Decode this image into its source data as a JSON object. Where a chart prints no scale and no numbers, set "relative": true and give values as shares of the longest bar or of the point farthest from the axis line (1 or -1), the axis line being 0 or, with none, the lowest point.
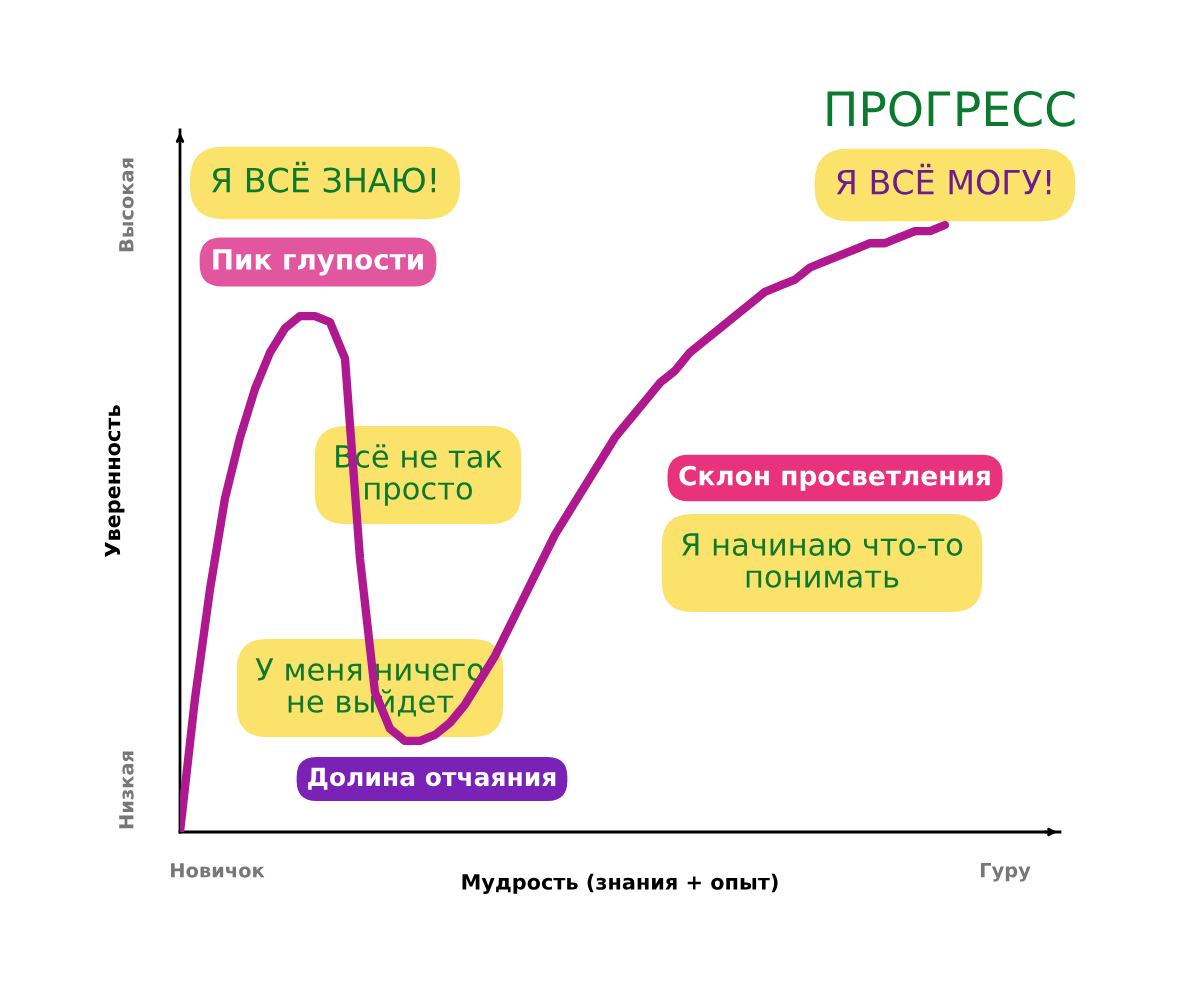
{
  "chart_data": {
    "type": "line",
    "relative": true,
    "title": "ПРОГРЕСС",
    "xlabel": "Мудрость (знания + опыт)",
    "ylabel": "Уверенность",
    "categories": [
      null,
      null,
      null,
      null,
      null,
      null,
      null,
      null,
      null,
      null,
      null,
      null,
      null,
      null,
      null,
      null,
      null,
      null,
      null,
      null,
      null,
      null,
      null,
      null,
      null,
      null,
      null,
      null,
      null,
      null,
      null,
      null,
      null,
      null,
      null,
      null,
      null,
      null,
      null,
      null,
      null,
      null,
      null,
      null,
      null,
      null,
      null,
      null,
      null,
      null,
      null,
      null
    ],
    "series": [
      {
        "color": "#b0188f",
        "values": [
          0.0,
          0.22,
          0.4,
          0.55,
          0.65,
          0.73,
          0.79,
          0.83,
          0.85,
          0.85,
          0.84,
          0.78,
          0.45,
          0.23,
          0.17,
          0.15,
          0.15,
          0.16,
          0.18,
          0.21,
          0.25,
          0.29,
          0.34,
          0.39,
          0.44,
          0.49,
          0.53,
          0.57,
          0.61,
          0.65,
          0.68,
          0.71,
          0.74,
          0.76,
          0.79,
          0.81,
          0.83,
          0.85,
          0.87,
          0.89,
          0.9,
          0.91,
          0.93,
          0.94,
          0.95,
          0.96,
          0.97,
          0.97,
          0.98,
          0.99,
          0.99,
          1.0
        ]
      }
    ],
    "marker": "none",
    "line_style": "solid",
    "legend": false,
    "annotations": [
      "Я ВСЁ ЗНАЮ!",
      "Пик глупости",
      "Всё не так\nпросто",
      "У меня ничего\nне выйдет",
      "Долина отчаяния",
      "Склон просветления",
      "Я начинаю что-то\nпонимать",
      "Я ВСЁ МОГУ!",
      "Высокая",
      "Низкая",
      "Новичок",
      "Гуру"
    ]
  }
}
